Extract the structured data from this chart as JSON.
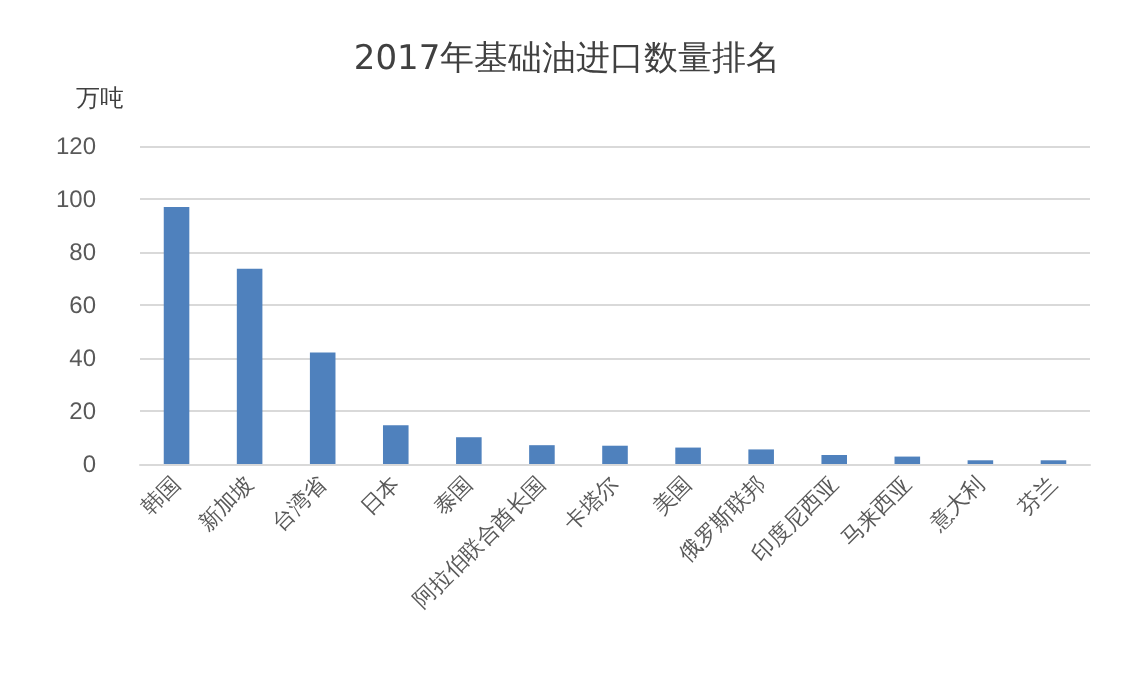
{
  "chart_data": {
    "type": "bar",
    "title": "2017年基础油进口数量排名",
    "ylabel": "万吨",
    "categories": [
      "韩国",
      "新加坡",
      "台湾省",
      "日本",
      "泰国",
      "阿拉伯联合酋长国",
      "卡塔尔",
      "美国",
      "俄罗斯联邦",
      "印度尼西亚",
      "马来西亚",
      "意大利",
      "芬兰"
    ],
    "values": [
      97,
      73.7,
      42.1,
      14.6,
      10.1,
      7.1,
      6.9,
      6.2,
      5.5,
      3.4,
      2.8,
      1.4,
      1.4
    ],
    "color": "#4f81bd",
    "ylim": [
      0,
      120
    ],
    "yticks": [
      0,
      20,
      40,
      60,
      80,
      100,
      120
    ],
    "grid": "y"
  }
}
